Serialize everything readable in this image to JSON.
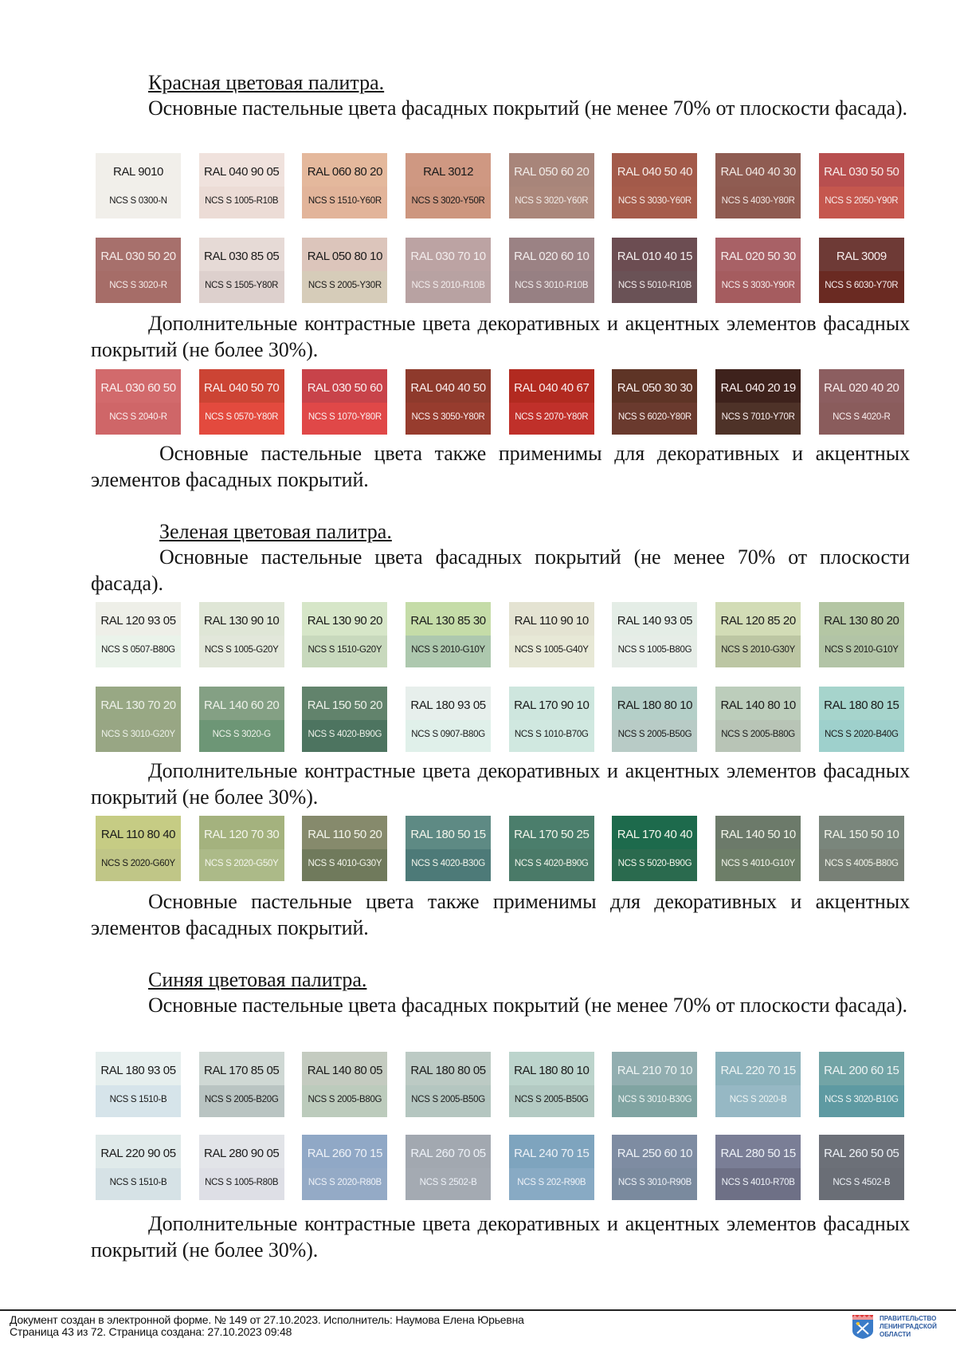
{
  "sections": [
    {
      "heading": "Красная цветовая палитра.",
      "main_text": "Основные пастельные цвета фасадных покрытий (не менее 70% от плоскости фасада).",
      "main_swatches": [
        {
          "ral": "RAL 9010",
          "ncs": "NCS S 0300-N",
          "top": "#f1efea",
          "bottom": "#f1efea",
          "text": "#1a1a1a"
        },
        {
          "ral": "RAL 040 90 05",
          "ncs": "NCS S 1005-R10B",
          "top": "#f0e2dd",
          "bottom": "#ecdcd6",
          "text": "#1a1a1a"
        },
        {
          "ral": "RAL 060 80 20",
          "ncs": "NCS S 1510-Y60R",
          "top": "#e4b89c",
          "bottom": "#e2b49a",
          "text": "#1a1a1a"
        },
        {
          "ral": "RAL 3012",
          "ncs": "NCS S 3020-Y50R",
          "top": "#cf9882",
          "bottom": "#cd967f",
          "text": "#1a1a1a"
        },
        {
          "ral": "RAL 050 60 20",
          "ncs": "NCS S 3020-Y60R",
          "top": "#a8857a",
          "bottom": "#ab877b",
          "text": "#f2ece8"
        },
        {
          "ral": "RAL 040 50 40",
          "ncs": "NCS S 3030-Y60R",
          "top": "#a35a4a",
          "bottom": "#a65c4b",
          "text": "#f6ece8"
        },
        {
          "ral": "RAL 040 40 30",
          "ncs": "NCS S 4030-Y80R",
          "top": "#8f5c52",
          "bottom": "#8e5a50",
          "text": "#f2e8e4"
        },
        {
          "ral": "RAL 030 50 50",
          "ncs": "NCS S 2050-Y90R",
          "top": "#b84f4f",
          "bottom": "#c5574e",
          "text": "#f8ecea"
        },
        {
          "ral": "RAL 030 50 20",
          "ncs": "NCS S 3020-R",
          "top": "#a7706c",
          "bottom": "#a66d68",
          "text": "#f6ecea"
        },
        {
          "ral": "RAL 030 85 05",
          "ncs": "NCS S 1505-Y80R",
          "top": "#e6dad6",
          "bottom": "#ddd0cd",
          "text": "#1a1a1a"
        },
        {
          "ral": "RAL 050 80 10",
          "ncs": "NCS S 2005-Y30R",
          "top": "#dcc5bb",
          "bottom": "#d6ccb9",
          "text": "#1a1a1a"
        },
        {
          "ral": "RAL 030 70 10",
          "ncs": "NCS S 2010-R10B",
          "top": "#bca3a3",
          "bottom": "#b8a2a2",
          "text": "#f3eded"
        },
        {
          "ral": "RAL 020 60 10",
          "ncs": "NCS S 3010-R10B",
          "top": "#9b8284",
          "bottom": "#978083",
          "text": "#f3eded"
        },
        {
          "ral": "RAL 010 40 15",
          "ncs": "NCS S 5010-R10B",
          "top": "#6c4d52",
          "bottom": "#6a5256",
          "text": "#f3eded"
        },
        {
          "ral": "RAL 020 50 30",
          "ncs": "NCS S 3030-Y90R",
          "top": "#a86166",
          "bottom": "#a55c5f",
          "text": "#f6ecec"
        },
        {
          "ral": "RAL 3009",
          "ncs": "NCS S 6030-Y70R",
          "top": "#6e3a36",
          "bottom": "#6a2a22",
          "text": "#f6ecec"
        }
      ],
      "accent_text": "Дополнительные контрастные цвета декоративных и акцентных элементов фасадных покрытий (не более 30%).",
      "accent_swatches": [
        {
          "ral": "RAL 030 60 50",
          "ncs": "NCS S 2040-R",
          "top": "#d26a6c",
          "bottom": "#cf6668",
          "text": "#fbefef"
        },
        {
          "ral": "RAL 040 50 70",
          "ncs": "NCS S 0570-Y80R",
          "top": "#cc4434",
          "bottom": "#e34a3e",
          "text": "#fbefef"
        },
        {
          "ral": "RAL 030 50 60",
          "ncs": "NCS S 1070-Y80R",
          "top": "#c8434a",
          "bottom": "#e04848",
          "text": "#fbefef"
        },
        {
          "ral": "RAL 040 40 50",
          "ncs": "NCS S 3050-Y80R",
          "top": "#8e3a2c",
          "bottom": "#973c2e",
          "text": "#fbefef"
        },
        {
          "ral": "RAL 040 40 67",
          "ncs": "NCS S 2070-Y80R",
          "top": "#b22a20",
          "bottom": "#c0302a",
          "text": "#fbefef"
        },
        {
          "ral": "RAL 050 30 30",
          "ncs": "NCS S 6020-Y80R",
          "top": "#5e3426",
          "bottom": "#6a3a2e",
          "text": "#fbefef"
        },
        {
          "ral": "RAL 040 20 19",
          "ncs": "NCS S 7010-Y70R",
          "top": "#3e221c",
          "bottom": "#4e3228",
          "text": "#fbefef"
        },
        {
          "ral": "RAL 020 40 20",
          "ncs": "NCS S 4020-R",
          "top": "#8c5e60",
          "bottom": "#8a5c5c",
          "text": "#fbefef"
        }
      ],
      "note_text": "Основные пастельные цвета также применимы для декоративных и акцентных элементов фасадных покрытий."
    },
    {
      "heading": "Зеленая цветовая палитра.",
      "main_text": "Основные пастельные цвета фасадных покрытий (не менее 70% от плоскости фасада).",
      "main_swatches": [
        {
          "ral": "RAL 120 93 05",
          "ncs": "NCS S 0507-B80G",
          "top": "#eeefe8",
          "bottom": "#eaf3ea",
          "text": "#1a1a1a"
        },
        {
          "ral": "RAL 130 90 10",
          "ncs": "NCS S 1005-G20Y",
          "top": "#dfe6d6",
          "bottom": "#e2e7da",
          "text": "#1a1a1a"
        },
        {
          "ral": "RAL 130 90 20",
          "ncs": "NCS S 1510-G20Y",
          "top": "#d6e6c8",
          "bottom": "#c8d9bd",
          "text": "#1a1a1a"
        },
        {
          "ral": "RAL 130 85 30",
          "ncs": "NCS S 2010-G10Y",
          "top": "#c5dca8",
          "bottom": "#adc8ae",
          "text": "#1a1a1a"
        },
        {
          "ral": "RAL 110 90 10",
          "ncs": "NCS S 1005-G40Y",
          "top": "#e4e3d2",
          "bottom": "#e7e8d6",
          "text": "#1a1a1a"
        },
        {
          "ral": "RAL 140 93 05",
          "ncs": "NCS S 1005-B80G",
          "top": "#e4ede6",
          "bottom": "#e6ede7",
          "text": "#1a1a1a"
        },
        {
          "ral": "RAL 120 85 20",
          "ncs": "NCS S 2010-G30Y",
          "top": "#d2dcb6",
          "bottom": "#bcc6a3",
          "text": "#1a1a1a"
        },
        {
          "ral": "RAL 130 80 20",
          "ncs": "NCS S 2010-G10Y",
          "top": "#b4c6a4",
          "bottom": "#b2c4a6",
          "text": "#1a1a1a"
        },
        {
          "ral": "RAL 130 70 20",
          "ncs": "NCS S 3010-G20Y",
          "top": "#98a884",
          "bottom": "#98a684",
          "text": "#eef2ea"
        },
        {
          "ral": "RAL 140 60 20",
          "ncs": "NCS S 3020-G",
          "top": "#84a084",
          "bottom": "#6d9676",
          "text": "#eef2ea"
        },
        {
          "ral": "RAL 150 50 20",
          "ncs": "NCS S 4020-B90G",
          "top": "#62836c",
          "bottom": "#4d7460",
          "text": "#eef2ea"
        },
        {
          "ral": "RAL 180 93 05",
          "ncs": "NCS S 0907-B80G",
          "top": "#e7efec",
          "bottom": "#e0f0ea",
          "text": "#1a1a1a"
        },
        {
          "ral": "RAL 170 90 10",
          "ncs": "NCS S 1010-B70G",
          "top": "#cee6de",
          "bottom": "#d0e8e0",
          "text": "#1a1a1a"
        },
        {
          "ral": "RAL 180 80 10",
          "ncs": "NCS S 2005-B50G",
          "top": "#b4cfc8",
          "bottom": "#b8cbc6",
          "text": "#1a1a1a"
        },
        {
          "ral": "RAL 140 80 10",
          "ncs": "NCS S 2005-B80G",
          "top": "#bccdbb",
          "bottom": "#b8c4b6",
          "text": "#1a1a1a"
        },
        {
          "ral": "RAL 180 80 15",
          "ncs": "NCS S 2020-B40G",
          "top": "#a6d4cc",
          "bottom": "#9ed0cc",
          "text": "#1a1a1a"
        }
      ],
      "accent_text": "Дополнительные контрастные цвета декоративных и акцентных элементов фасадных покрытий (не более 30%).",
      "accent_swatches": [
        {
          "ral": "RAL 110 80 40",
          "ncs": "NCS S 2020-G60Y",
          "top": "#c6cc84",
          "bottom": "#c0c687",
          "text": "#1a1a1a"
        },
        {
          "ral": "RAL 120 70 30",
          "ncs": "NCS S 2020-G50Y",
          "top": "#a4b27e",
          "bottom": "#acba88",
          "text": "#f4f6ec"
        },
        {
          "ral": "RAL 110 50 20",
          "ncs": "NCS S 4010-G30Y",
          "top": "#868a6c",
          "bottom": "#707a5c",
          "text": "#f4f6ec"
        },
        {
          "ral": "RAL 180 50 15",
          "ncs": "NCS S 4020-B30G",
          "top": "#5e8a84",
          "bottom": "#4d7a78",
          "text": "#f4f6ec"
        },
        {
          "ral": "RAL 170 50 25",
          "ncs": "NCS S 4020-B90G",
          "top": "#4b7e6c",
          "bottom": "#4a7a68",
          "text": "#f4f6ec"
        },
        {
          "ral": "RAL 170 40 40",
          "ncs": "NCS S 5020-B90G",
          "top": "#1d6a4c",
          "bottom": "#2a6a4e",
          "text": "#f4f6ec"
        },
        {
          "ral": "RAL 140 50 10",
          "ncs": "NCS S 4010-G10Y",
          "top": "#6c7a6a",
          "bottom": "#6d7e68",
          "text": "#f4f6ec"
        },
        {
          "ral": "RAL 150 50 10",
          "ncs": "NCS S 4005-B80G",
          "top": "#7a867c",
          "bottom": "#788076",
          "text": "#f4f6ec"
        }
      ],
      "note_text": "Основные пастельные цвета также применимы для декоративных и акцентных элементов фасадных покрытий."
    },
    {
      "heading": "Синяя цветовая палитра.",
      "main_text": "Основные пастельные цвета фасадных покрытий (не менее 70% от плоскости фасада).",
      "main_swatches": [
        {
          "ral": "RAL 180 93 05",
          "ncs": "NCS S 1510-B",
          "top": "#e6efee",
          "bottom": "#d6e4ea",
          "text": "#1a1a1a"
        },
        {
          "ral": "RAL 170 85 05",
          "ncs": "NCS S 2005-B20G",
          "top": "#cfd8d4",
          "bottom": "#b9c4c2",
          "text": "#1a1a1a"
        },
        {
          "ral": "RAL 140 80 05",
          "ncs": "NCS S 2005-B80G",
          "top": "#c4cbc0",
          "bottom": "#bccbbc",
          "text": "#1a1a1a"
        },
        {
          "ral": "RAL 180 80 05",
          "ncs": "NCS S 2005-B50G",
          "top": "#bccac4",
          "bottom": "#b4c6c0",
          "text": "#1a1a1a"
        },
        {
          "ral": "RAL 180 80 10",
          "ncs": "NCS S 2005-B50G",
          "top": "#bcd4cc",
          "bottom": "#b3cac3",
          "text": "#1a1a1a"
        },
        {
          "ral": "RAL 210 70 10",
          "ncs": "NCS S 3010-B30G",
          "top": "#92aeb0",
          "bottom": "#80a4a2",
          "text": "#eef4f4"
        },
        {
          "ral": "RAL 220 70 15",
          "ncs": "NCS S 2020-B",
          "top": "#8cb2bc",
          "bottom": "#96b8c4",
          "text": "#eef4f4"
        },
        {
          "ral": "RAL 200 60 15",
          "ncs": "NCS S 3020-B10G",
          "top": "#72a4a6",
          "bottom": "#5e9aa2",
          "text": "#eef4f4"
        },
        {
          "ral": "RAL 220 90 05",
          "ncs": "NCS S 1510-B",
          "top": "#e0eaea",
          "bottom": "#d6e2e6",
          "text": "#1a1a1a"
        },
        {
          "ral": "RAL 280 90 05",
          "ncs": "NCS S 1005-R80B",
          "top": "#e2e4e8",
          "bottom": "#dedfe6",
          "text": "#1a1a1a"
        },
        {
          "ral": "RAL 260 70 15",
          "ncs": "NCS S 2020-R80B",
          "top": "#90a8c6",
          "bottom": "#94aac6",
          "text": "#eef2f8"
        },
        {
          "ral": "RAL 260 70 05",
          "ncs": "NCS S 2502-B",
          "top": "#a2a8b0",
          "bottom": "#a4aab2",
          "text": "#eef2f8"
        },
        {
          "ral": "RAL 240 70 15",
          "ncs": "NCS S 202-R90B",
          "top": "#7ea4be",
          "bottom": "#88aac4",
          "text": "#eef2f8"
        },
        {
          "ral": "RAL 250 60 10",
          "ncs": "NCS S 3010-R90B",
          "top": "#7e8ca2",
          "bottom": "#7a8a9e",
          "text": "#eef2f8"
        },
        {
          "ral": "RAL 280 50 15",
          "ncs": "NCS S 4010-R70B",
          "top": "#7a7e96",
          "bottom": "#6e7086",
          "text": "#eef2f8"
        },
        {
          "ral": "RAL 260 50 05",
          "ncs": "NCS S 4502-B",
          "top": "#6c7078",
          "bottom": "#6a6e76",
          "text": "#eef2f8"
        }
      ],
      "accent_text": "Дополнительные контрастные цвета декоративных и акцентных элементов фасадных покрытий (не более 30%)."
    }
  ],
  "footer": {
    "line1": "Документ создан в электронной форме. № 149 от 27.10.2023. Исполнитель: Наумова Елена Юрьевна",
    "line2": "Страница 43 из 72. Страница создана: 27.10.2023 09:48",
    "logo_line1": "ПРАВИТЕЛЬСТВО",
    "logo_line2": "ЛЕНИНГРАДСКОЙ",
    "logo_line3": "ОБЛАСТИ",
    "logo_color": "#2c5aa0"
  }
}
